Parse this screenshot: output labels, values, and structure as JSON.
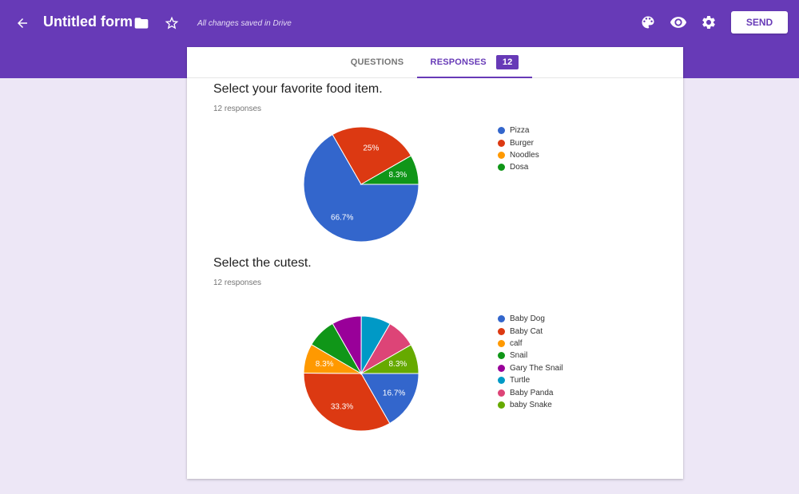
{
  "header": {
    "title": "Untitled form",
    "saved_status": "All changes saved in Drive",
    "send_label": "SEND",
    "back_icon": "arrow-back-icon",
    "folder_icon": "folder-icon",
    "star_icon": "star-outline-icon",
    "palette_icon": "palette-icon",
    "preview_icon": "eye-icon",
    "settings_icon": "gear-icon"
  },
  "tabs": {
    "questions": "QUESTIONS",
    "responses": "RESPONSES",
    "responses_count": "12"
  },
  "colors": {
    "primary": "#673ab7",
    "background": "#ede7f6"
  },
  "questions": [
    {
      "title": "Select your favorite food item.",
      "count": "12 responses",
      "chart_data": {
        "type": "pie",
        "categories": [
          "Pizza",
          "Burger",
          "Noodles",
          "Dosa"
        ],
        "values": [
          66.7,
          25,
          0,
          8.3
        ],
        "labels": [
          "66.7%",
          "25%",
          "",
          "8.3%"
        ],
        "colors": [
          "#3366cc",
          "#dc3912",
          "#ff9900",
          "#109618"
        ]
      }
    },
    {
      "title": "Select the cutest.",
      "count": "12 responses",
      "chart_data": {
        "type": "pie",
        "categories": [
          "Baby Dog",
          "Baby Cat",
          "calf",
          "Snail",
          "Gary The Snail",
          "Turtle",
          "Baby Panda",
          "baby Snake"
        ],
        "values": [
          16.7,
          33.3,
          8.3,
          8.3,
          8.3,
          8.3,
          8.3,
          8.3
        ],
        "labels": [
          "16.7%",
          "33.3%",
          "8.3%",
          "",
          "",
          "",
          "",
          "8.3%"
        ],
        "colors": [
          "#3366cc",
          "#dc3912",
          "#ff9900",
          "#109618",
          "#990099",
          "#0099c6",
          "#dd4477",
          "#66aa00"
        ]
      }
    }
  ]
}
